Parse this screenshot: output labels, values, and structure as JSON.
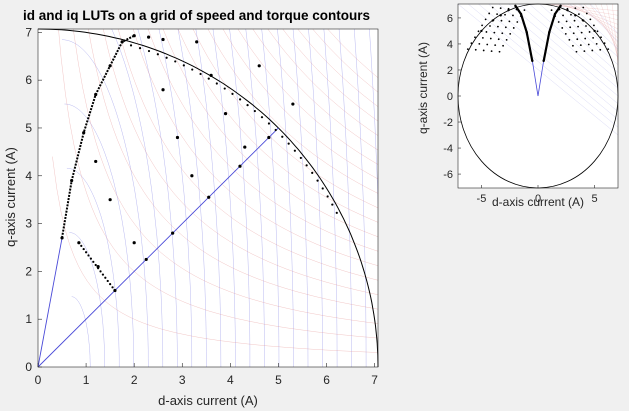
{
  "chart_data": [
    {
      "type": "scatter",
      "title": "id and iq LUTs on a grid of speed and torque contours",
      "xlabel": "d-axis current (A)",
      "ylabel": "q-axis current (A)",
      "xlim": [
        0,
        7.07
      ],
      "ylim": [
        0,
        7.07
      ],
      "xticks": [
        "0",
        "1",
        "2",
        "3",
        "4",
        "5",
        "6",
        "7"
      ],
      "yticks": [
        "0",
        "1",
        "2",
        "3",
        "4",
        "5",
        "6",
        "7"
      ],
      "current_limit_radius": 7.07,
      "mtpa_line_end": [
        5.0,
        5.0
      ],
      "speed_contours": 28,
      "torque_contours": 20,
      "grid": false,
      "series": [
        {
          "values": [
            [
              0.5,
              2.7
            ],
            [
              0.7,
              3.9
            ],
            [
              0.95,
              4.9
            ],
            [
              1.2,
              5.7
            ],
            [
              1.5,
              6.3
            ],
            [
              1.75,
              6.8
            ],
            [
              2.0,
              6.93
            ]
          ]
        },
        {
          "values": [
            [
              0.85,
              2.6
            ],
            [
              1.25,
              2.1
            ],
            [
              1.6,
              1.6
            ],
            [
              2.25,
              2.25
            ],
            [
              2.8,
              2.8
            ],
            [
              3.55,
              3.55
            ],
            [
              4.2,
              4.2
            ],
            [
              4.8,
              4.8
            ]
          ]
        },
        {
          "values": [
            [
              1.2,
              4.3
            ],
            [
              1.5,
              3.5
            ],
            [
              2.0,
              2.6
            ],
            [
              2.3,
              6.9
            ],
            [
              2.6,
              5.8
            ],
            [
              2.9,
              4.8
            ],
            [
              3.2,
              4.0
            ],
            [
              3.6,
              6.1
            ],
            [
              3.9,
              5.3
            ],
            [
              4.3,
              4.6
            ],
            [
              2.6,
              6.85
            ],
            [
              3.3,
              6.8
            ],
            [
              4.6,
              6.3
            ],
            [
              5.3,
              5.5
            ]
          ]
        }
      ]
    },
    {
      "type": "scatter",
      "title": "",
      "xlabel": "d-axis current (A)",
      "ylabel": "q-axis current (A)",
      "xlim": [
        -7.07,
        7.07
      ],
      "ylim": [
        -7.07,
        7.07
      ],
      "xticks": [
        "-5",
        "0",
        "5"
      ],
      "yticks": [
        "-6",
        "-4",
        "-2",
        "0",
        "2",
        "4",
        "6"
      ],
      "current_limit_radius": 7.07,
      "grid": false,
      "series": [
        {
          "values": [
            [
              -0.5,
              2.7
            ],
            [
              -1.0,
              4.9
            ],
            [
              -1.5,
              6.3
            ],
            [
              -2.0,
              6.93
            ],
            [
              -2.6,
              6.6
            ],
            [
              -3.3,
              6.2
            ],
            [
              -4.0,
              5.8
            ],
            [
              -5.0,
              5.0
            ]
          ]
        },
        {
          "values": [
            [
              0.5,
              2.7
            ],
            [
              1.0,
              4.9
            ],
            [
              1.5,
              6.3
            ],
            [
              2.0,
              6.93
            ],
            [
              2.6,
              6.6
            ],
            [
              3.3,
              6.2
            ],
            [
              4.0,
              5.8
            ],
            [
              5.0,
              5.0
            ]
          ]
        }
      ]
    }
  ]
}
